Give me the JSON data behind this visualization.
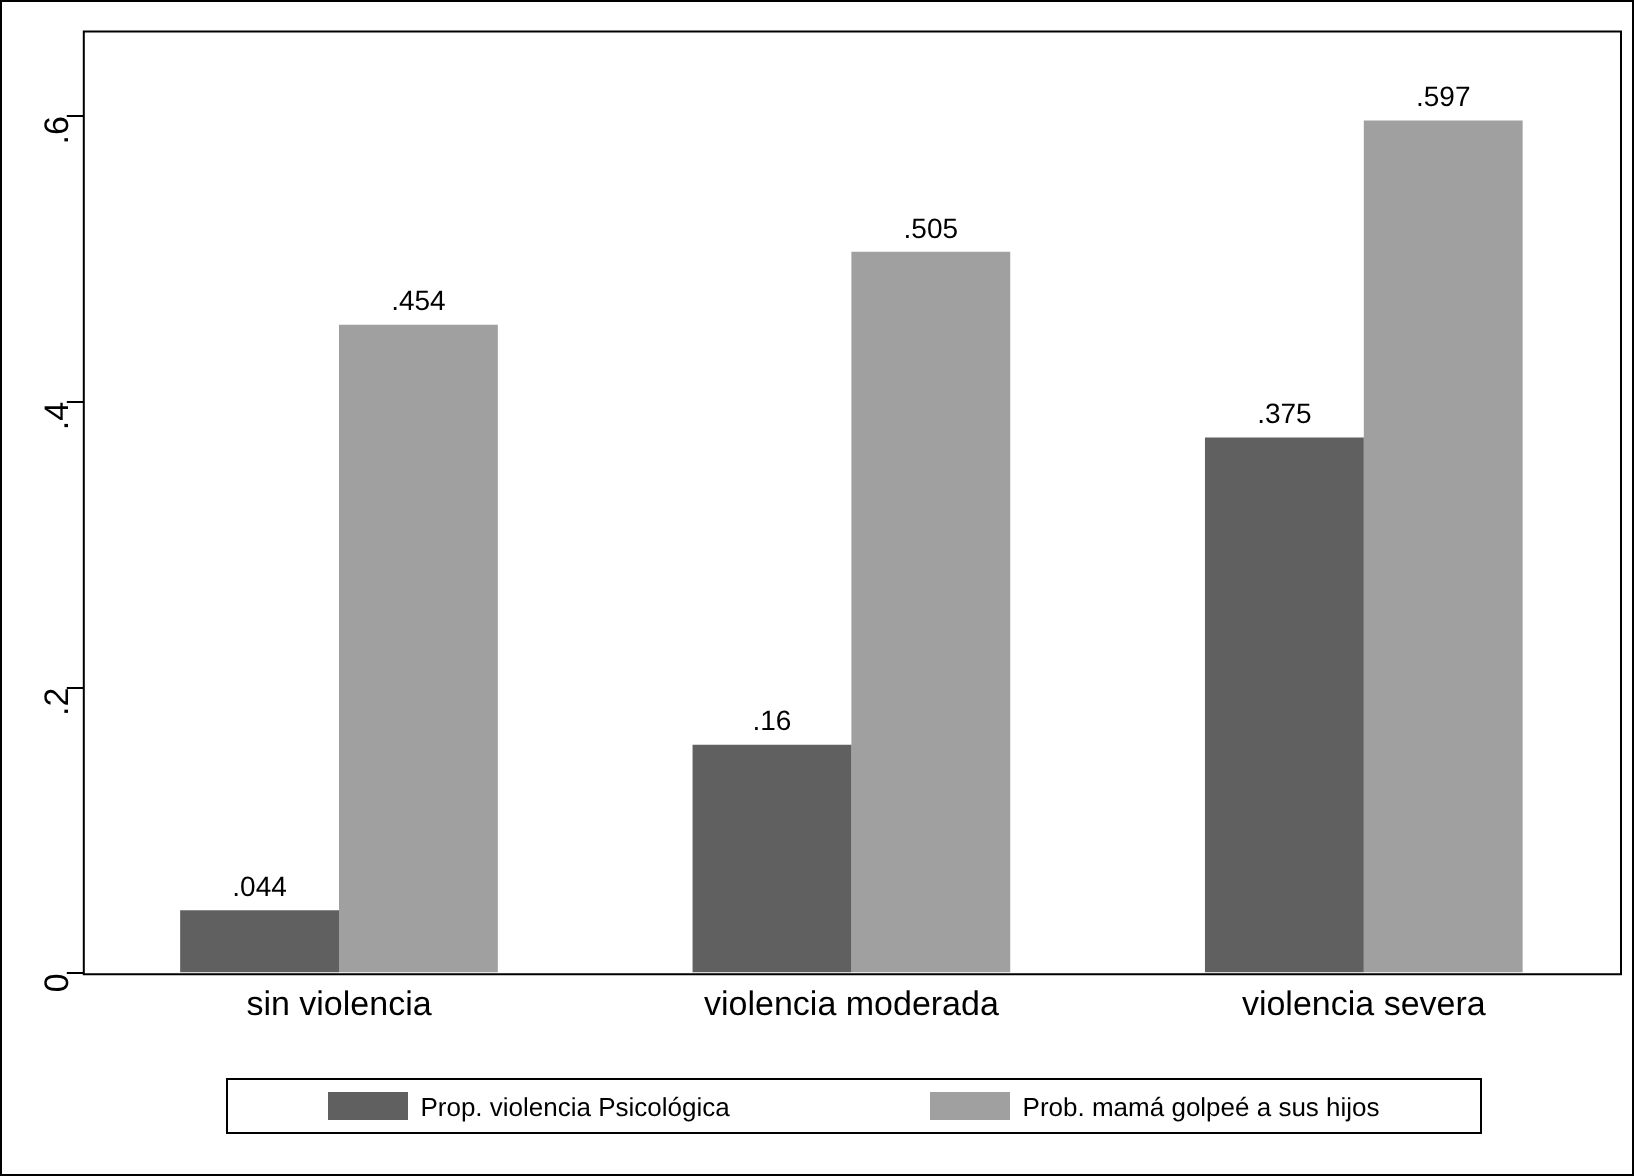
{
  "chart_data": {
    "type": "bar",
    "categories": [
      "sin violencia",
      "violencia moderada",
      "violencia severa"
    ],
    "series": [
      {
        "name": "Prop. violencia Psicológica",
        "color": "#606060",
        "values": [
          0.044,
          0.16,
          0.375
        ]
      },
      {
        "name": "Prob. mamá golpeé a sus hijos",
        "color": "#a0a0a0",
        "values": [
          0.454,
          0.505,
          0.597
        ]
      }
    ],
    "ylim": [
      0,
      0.66
    ],
    "yticks": [
      0,
      {
        "value": 0.2,
        "label": ".2"
      },
      {
        "value": 0.4,
        "label": ".4"
      },
      {
        "value": 0.6,
        "label": ".6"
      }
    ],
    "value_labels": [
      [
        ".044",
        ".16",
        ".375"
      ],
      [
        ".454",
        ".505",
        ".597"
      ]
    ],
    "grid": false,
    "legend": "bottom"
  }
}
